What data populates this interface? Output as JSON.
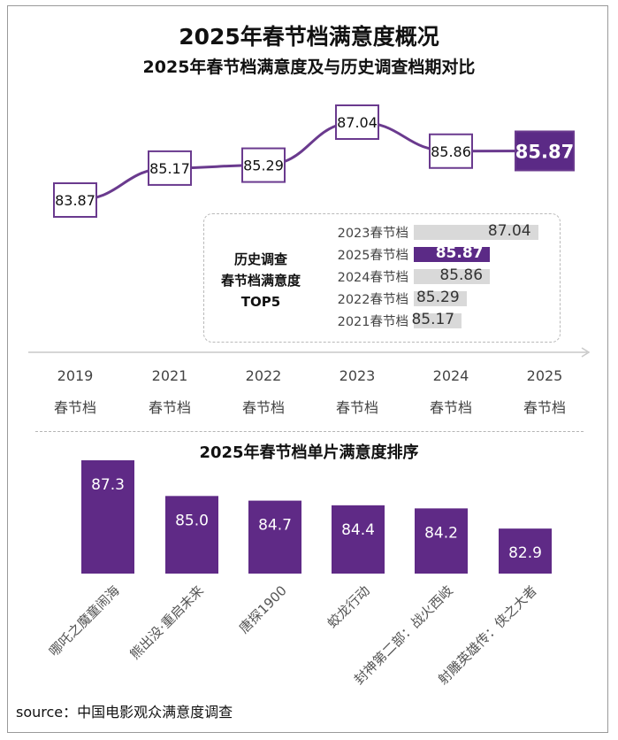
{
  "header": {
    "title": "2025年春节档满意度概况",
    "subtitle": "2025年春节档满意度及与历史调查档期对比"
  },
  "chart_data": [
    {
      "type": "line",
      "title": "2025年春节档满意度及与历史调查档期对比",
      "categories": [
        "2019",
        "2021",
        "2022",
        "2023",
        "2024",
        "2025"
      ],
      "category_suffix": "春节档",
      "values": [
        83.87,
        85.17,
        85.29,
        87.04,
        85.86,
        85.87
      ],
      "value_labels": [
        "83.87",
        "85.17",
        "85.29",
        "87.04",
        "85.86",
        "85.87"
      ],
      "highlight_index": 5,
      "ylim": [
        83.0,
        88.0
      ],
      "line_color": "#6a3a8e",
      "highlight_color": "#5b2a86"
    },
    {
      "type": "bar",
      "orientation": "horizontal",
      "title_lines": [
        "历史调查",
        "春节档满意度",
        "TOP5"
      ],
      "categories": [
        "2023春节档",
        "2025春节档",
        "2024春节档",
        "2022春节档",
        "2021春节档"
      ],
      "values": [
        87.04,
        85.87,
        85.86,
        85.29,
        85.17
      ],
      "value_labels": [
        "87.04",
        "85.87",
        "85.86",
        "85.29",
        "85.17"
      ],
      "highlight_index": 1,
      "xlim": [
        84.0,
        87.2
      ]
    },
    {
      "type": "bar",
      "title": "2025年春节档单片满意度排序",
      "categories": [
        "哪吒之魔童闹海",
        "熊出没·重启未来",
        "唐探1900",
        "蛟龙行动",
        "封神第二部：战火西岐",
        "射雕英雄传：侠之大者"
      ],
      "values": [
        87.3,
        85.0,
        84.7,
        84.4,
        84.2,
        82.9
      ],
      "value_labels": [
        "87.3",
        "85.0",
        "84.7",
        "84.4",
        "84.2",
        "82.9"
      ],
      "ylim": [
        80.0,
        87.3
      ],
      "bar_color": "#5f2a86"
    }
  ],
  "footer": {
    "source": "source：中国电影观众满意度调查"
  }
}
